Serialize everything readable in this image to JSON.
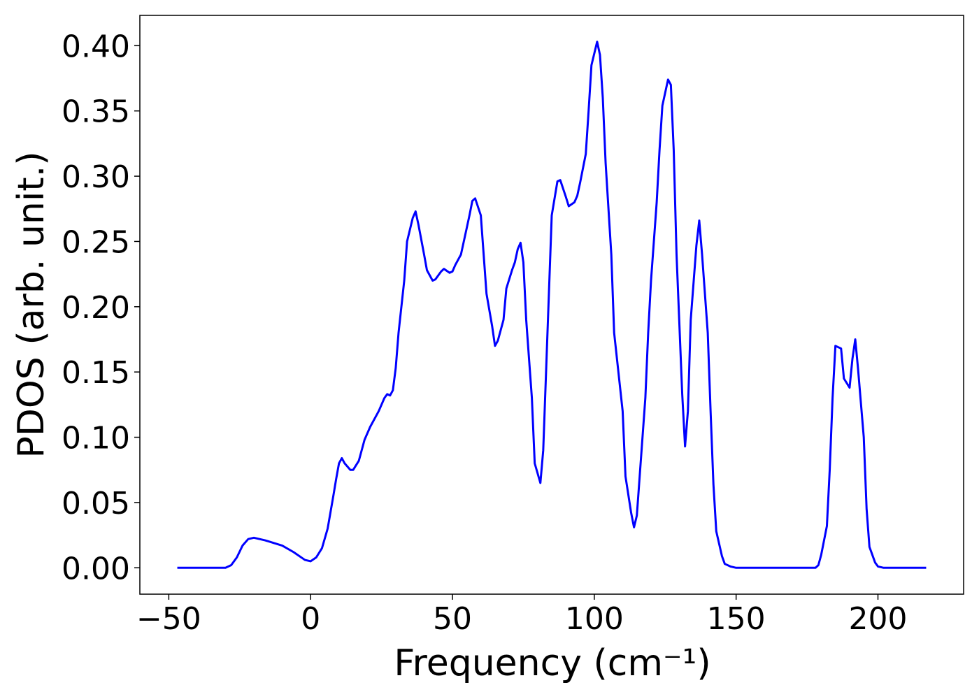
{
  "chart_data": {
    "type": "line",
    "xlabel": "Frequency (cm⁻¹)",
    "ylabel": "PDOS (arb. unit.)",
    "xlim": [
      -60.2,
      230.2
    ],
    "ylim": [
      -0.0202,
      0.4232
    ],
    "xticks": [
      {
        "value": -50,
        "label": "−50"
      },
      0,
      50,
      100,
      150,
      200
    ],
    "yticks": [
      {
        "value": 0,
        "label": "0.00"
      },
      {
        "value": 0.05,
        "label": "0.05"
      },
      {
        "value": 0.1,
        "label": "0.10"
      },
      {
        "value": 0.15,
        "label": "0.15"
      },
      {
        "value": 0.2,
        "label": "0.20"
      },
      {
        "value": 0.25,
        "label": "0.25"
      },
      {
        "value": 0.3,
        "label": "0.30"
      },
      {
        "value": 0.35,
        "label": "0.35"
      },
      {
        "value": 0.4,
        "label": "0.40"
      }
    ],
    "grid": false,
    "x": [
      -47,
      -30,
      -28,
      -26,
      -24,
      -22,
      -20,
      -16,
      -10,
      -6,
      -2,
      0,
      2,
      4,
      6,
      8,
      9,
      10,
      11,
      12,
      14,
      15,
      17,
      19,
      21,
      24,
      26,
      27,
      28,
      29,
      30,
      31,
      33,
      34,
      36,
      37,
      38,
      40,
      41,
      43,
      44,
      46,
      47,
      49,
      50,
      51,
      53,
      55,
      56,
      57,
      58,
      60,
      61,
      62,
      64,
      65,
      66,
      68,
      69,
      71,
      72,
      73,
      74,
      75,
      76,
      78,
      79,
      81,
      82,
      83,
      84,
      85,
      87,
      88,
      90,
      91,
      93,
      94,
      95,
      97,
      98,
      99,
      101,
      102,
      103,
      104,
      106,
      107,
      110,
      111,
      113,
      114,
      115,
      116,
      118,
      119,
      120,
      122,
      123,
      124,
      126,
      127,
      128,
      129,
      131,
      132,
      133,
      134,
      136,
      137,
      138,
      140,
      141,
      142,
      143,
      145,
      146,
      148,
      150,
      178,
      179,
      180,
      182,
      183,
      184,
      185,
      187,
      188,
      190,
      191,
      192,
      193,
      195,
      196,
      197,
      199,
      200,
      202,
      217
    ],
    "series": [
      {
        "name": "PDOS",
        "color": "#0000ff",
        "values": [
          0,
          0,
          0.002,
          0.008,
          0.017,
          0.022,
          0.023,
          0.021,
          0.017,
          0.012,
          0.006,
          0.005,
          0.008,
          0.015,
          0.03,
          0.055,
          0.068,
          0.08,
          0.084,
          0.08,
          0.075,
          0.075,
          0.082,
          0.098,
          0.108,
          0.12,
          0.13,
          0.133,
          0.132,
          0.136,
          0.153,
          0.18,
          0.22,
          0.25,
          0.268,
          0.273,
          0.263,
          0.24,
          0.228,
          0.22,
          0.221,
          0.227,
          0.229,
          0.226,
          0.227,
          0.232,
          0.24,
          0.26,
          0.27,
          0.281,
          0.283,
          0.27,
          0.24,
          0.21,
          0.185,
          0.17,
          0.174,
          0.19,
          0.214,
          0.228,
          0.234,
          0.244,
          0.249,
          0.234,
          0.19,
          0.13,
          0.08,
          0.065,
          0.09,
          0.15,
          0.21,
          0.27,
          0.296,
          0.297,
          0.284,
          0.277,
          0.28,
          0.285,
          0.295,
          0.317,
          0.35,
          0.385,
          0.403,
          0.393,
          0.36,
          0.31,
          0.24,
          0.18,
          0.12,
          0.07,
          0.042,
          0.031,
          0.04,
          0.07,
          0.13,
          0.18,
          0.22,
          0.28,
          0.32,
          0.354,
          0.374,
          0.37,
          0.32,
          0.24,
          0.133,
          0.093,
          0.12,
          0.19,
          0.247,
          0.266,
          0.24,
          0.18,
          0.12,
          0.064,
          0.028,
          0.009,
          0.003,
          0.001,
          0,
          0,
          0.002,
          0.01,
          0.032,
          0.075,
          0.13,
          0.17,
          0.168,
          0.145,
          0.138,
          0.16,
          0.175,
          0.152,
          0.1,
          0.045,
          0.016,
          0.004,
          0.001,
          0,
          0
        ]
      }
    ]
  }
}
